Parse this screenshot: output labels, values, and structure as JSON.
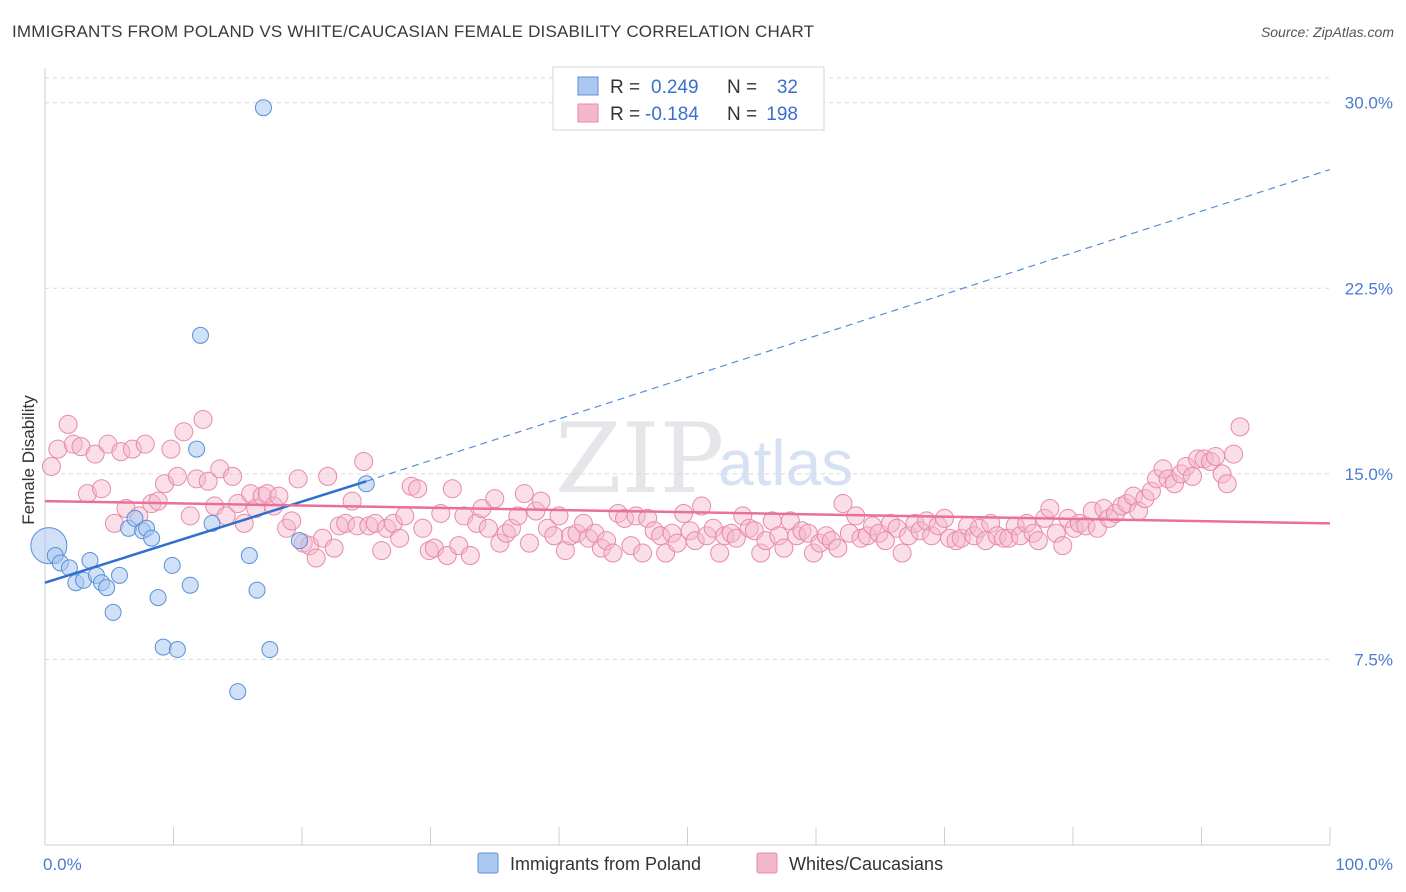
{
  "title": "IMMIGRANTS FROM POLAND VS WHITE/CAUCASIAN FEMALE DISABILITY CORRELATION CHART",
  "source": "Source: ZipAtlas.com",
  "watermark": {
    "part1": "ZIP",
    "part2": "atlas"
  },
  "colors": {
    "blue_fill": "#aac8f0",
    "blue_stroke": "#5a8fd8",
    "blue_line": "#2f6fd0",
    "pink_fill": "#f4b8cb",
    "pink_stroke": "#e88aa8",
    "pink_line": "#e8709a",
    "grid": "#d8d8d8",
    "tick_text": "#4a7bd0"
  },
  "legend_box": {
    "r_label": "R =",
    "n_label": "N =",
    "rows": [
      {
        "r": "0.249",
        "n": "32"
      },
      {
        "r": "-0.184",
        "n": "198"
      }
    ]
  },
  "chart_data": {
    "type": "scatter",
    "ylabel": "Female Disability",
    "xlim": [
      0,
      100
    ],
    "ylim": [
      0,
      31
    ],
    "x_tick_labels": [
      "0.0%",
      "100.0%"
    ],
    "y_tick_labels": [
      "7.5%",
      "15.0%",
      "22.5%",
      "30.0%"
    ],
    "y_ticks": [
      7.5,
      15.0,
      22.5,
      30.0
    ],
    "grid": true,
    "legend_placement": "top-center",
    "series": [
      {
        "name": "Immigrants from Poland",
        "color": "blue",
        "trend": {
          "x0": 0,
          "y0": 10.6,
          "x1": 25,
          "y1": 14.7,
          "extend_to_x": 100,
          "extend_y": 27.3
        },
        "points": [
          [
            0.3,
            12.1
          ],
          [
            0.8,
            11.7
          ],
          [
            1.2,
            11.4
          ],
          [
            1.9,
            11.2
          ],
          [
            2.4,
            10.6
          ],
          [
            3.0,
            10.7
          ],
          [
            3.5,
            11.5
          ],
          [
            4.0,
            10.9
          ],
          [
            4.4,
            10.6
          ],
          [
            4.8,
            10.4
          ],
          [
            5.3,
            9.4
          ],
          [
            5.8,
            10.9
          ],
          [
            6.5,
            12.8
          ],
          [
            7.0,
            13.2
          ],
          [
            7.6,
            12.7
          ],
          [
            7.9,
            12.8
          ],
          [
            8.3,
            12.4
          ],
          [
            8.8,
            10.0
          ],
          [
            9.2,
            8.0
          ],
          [
            9.9,
            11.3
          ],
          [
            10.3,
            7.9
          ],
          [
            11.3,
            10.5
          ],
          [
            11.8,
            16.0
          ],
          [
            12.1,
            20.6
          ],
          [
            13.0,
            13.0
          ],
          [
            15.0,
            6.2
          ],
          [
            15.9,
            11.7
          ],
          [
            16.5,
            10.3
          ],
          [
            17.0,
            29.8
          ],
          [
            17.5,
            7.9
          ],
          [
            19.8,
            12.3
          ],
          [
            25.0,
            14.6
          ]
        ],
        "big_point": [
          0.3,
          12.1
        ]
      },
      {
        "name": "Whites/Caucasians",
        "color": "pink",
        "trend": {
          "x0": 0,
          "y0": 13.9,
          "x1": 100,
          "y1": 13.0
        },
        "points": [
          [
            0.5,
            15.3
          ],
          [
            1.0,
            16.0
          ],
          [
            1.8,
            17.0
          ],
          [
            2.2,
            16.2
          ],
          [
            2.8,
            16.1
          ],
          [
            3.3,
            14.2
          ],
          [
            3.9,
            15.8
          ],
          [
            4.4,
            14.4
          ],
          [
            4.9,
            16.2
          ],
          [
            5.4,
            13.0
          ],
          [
            5.9,
            15.9
          ],
          [
            6.3,
            13.6
          ],
          [
            6.8,
            16.0
          ],
          [
            7.3,
            13.3
          ],
          [
            7.8,
            16.2
          ],
          [
            8.3,
            13.8
          ],
          [
            8.8,
            13.9
          ],
          [
            9.3,
            14.6
          ],
          [
            9.8,
            16.0
          ],
          [
            10.3,
            14.9
          ],
          [
            10.8,
            16.7
          ],
          [
            11.3,
            13.3
          ],
          [
            11.8,
            14.8
          ],
          [
            12.3,
            17.2
          ],
          [
            12.7,
            14.7
          ],
          [
            13.2,
            13.7
          ],
          [
            13.6,
            15.2
          ],
          [
            14.1,
            13.3
          ],
          [
            14.6,
            14.9
          ],
          [
            15.0,
            13.8
          ],
          [
            15.5,
            13.0
          ],
          [
            16.0,
            14.2
          ],
          [
            16.4,
            13.6
          ],
          [
            16.9,
            14.1
          ],
          [
            17.3,
            14.2
          ],
          [
            17.8,
            13.7
          ],
          [
            18.2,
            14.1
          ],
          [
            18.8,
            12.8
          ],
          [
            19.2,
            13.1
          ],
          [
            19.7,
            14.8
          ],
          [
            20.1,
            12.2
          ],
          [
            20.6,
            12.1
          ],
          [
            21.1,
            11.6
          ],
          [
            21.6,
            12.4
          ],
          [
            22.0,
            14.9
          ],
          [
            22.5,
            12.0
          ],
          [
            22.9,
            12.9
          ],
          [
            23.4,
            13.0
          ],
          [
            23.9,
            13.9
          ],
          [
            24.3,
            12.9
          ],
          [
            24.8,
            15.5
          ],
          [
            25.2,
            12.9
          ],
          [
            25.7,
            13.0
          ],
          [
            26.2,
            11.9
          ],
          [
            26.6,
            12.8
          ],
          [
            27.1,
            13.0
          ],
          [
            27.6,
            12.4
          ],
          [
            28.0,
            13.3
          ],
          [
            28.5,
            14.5
          ],
          [
            29.0,
            14.4
          ],
          [
            29.4,
            12.8
          ],
          [
            29.9,
            11.9
          ],
          [
            30.3,
            12.0
          ],
          [
            30.8,
            13.4
          ],
          [
            31.3,
            11.7
          ],
          [
            31.7,
            14.4
          ],
          [
            32.2,
            12.1
          ],
          [
            32.6,
            13.3
          ],
          [
            33.1,
            11.7
          ],
          [
            33.6,
            13.0
          ],
          [
            34.0,
            13.6
          ],
          [
            34.5,
            12.8
          ],
          [
            35.0,
            14.0
          ],
          [
            35.4,
            12.2
          ],
          [
            35.9,
            12.6
          ],
          [
            36.3,
            12.8
          ],
          [
            36.8,
            13.3
          ],
          [
            37.3,
            14.2
          ],
          [
            37.7,
            12.2
          ],
          [
            38.2,
            13.5
          ],
          [
            38.6,
            13.9
          ],
          [
            39.1,
            12.8
          ],
          [
            39.6,
            12.5
          ],
          [
            40.0,
            13.3
          ],
          [
            40.5,
            11.9
          ],
          [
            40.9,
            12.5
          ],
          [
            41.4,
            12.6
          ],
          [
            41.9,
            13.0
          ],
          [
            42.3,
            12.4
          ],
          [
            42.8,
            12.6
          ],
          [
            43.3,
            12.0
          ],
          [
            43.7,
            12.3
          ],
          [
            44.2,
            11.8
          ],
          [
            44.6,
            13.4
          ],
          [
            45.1,
            13.2
          ],
          [
            45.6,
            12.1
          ],
          [
            46.0,
            13.3
          ],
          [
            46.5,
            11.8
          ],
          [
            46.9,
            13.2
          ],
          [
            47.4,
            12.7
          ],
          [
            47.9,
            12.5
          ],
          [
            48.3,
            11.8
          ],
          [
            48.8,
            12.6
          ],
          [
            49.2,
            12.2
          ],
          [
            49.7,
            13.4
          ],
          [
            50.2,
            12.7
          ],
          [
            50.6,
            12.3
          ],
          [
            51.1,
            13.7
          ],
          [
            51.5,
            12.5
          ],
          [
            52.0,
            12.8
          ],
          [
            52.5,
            11.8
          ],
          [
            52.9,
            12.5
          ],
          [
            53.4,
            12.6
          ],
          [
            53.8,
            12.4
          ],
          [
            54.3,
            13.3
          ],
          [
            54.8,
            12.8
          ],
          [
            55.2,
            12.7
          ],
          [
            55.7,
            11.8
          ],
          [
            56.1,
            12.3
          ],
          [
            56.6,
            13.1
          ],
          [
            57.1,
            12.5
          ],
          [
            57.5,
            12.0
          ],
          [
            58.0,
            13.1
          ],
          [
            58.5,
            12.5
          ],
          [
            58.9,
            12.7
          ],
          [
            59.4,
            12.6
          ],
          [
            59.8,
            11.8
          ],
          [
            60.3,
            12.2
          ],
          [
            60.8,
            12.5
          ],
          [
            61.2,
            12.3
          ],
          [
            61.7,
            12.0
          ],
          [
            62.1,
            13.8
          ],
          [
            62.6,
            12.6
          ],
          [
            63.1,
            13.3
          ],
          [
            63.5,
            12.4
          ],
          [
            64.0,
            12.5
          ],
          [
            64.4,
            12.9
          ],
          [
            64.9,
            12.6
          ],
          [
            65.4,
            12.3
          ],
          [
            65.8,
            13.0
          ],
          [
            66.3,
            12.8
          ],
          [
            66.7,
            11.8
          ],
          [
            67.2,
            12.5
          ],
          [
            67.7,
            13.0
          ],
          [
            68.1,
            12.7
          ],
          [
            68.6,
            13.1
          ],
          [
            69.0,
            12.5
          ],
          [
            69.5,
            12.9
          ],
          [
            70.0,
            13.2
          ],
          [
            70.4,
            12.4
          ],
          [
            70.9,
            12.3
          ],
          [
            71.3,
            12.4
          ],
          [
            71.8,
            12.9
          ],
          [
            72.3,
            12.5
          ],
          [
            72.7,
            12.8
          ],
          [
            73.2,
            12.3
          ],
          [
            73.6,
            13.0
          ],
          [
            74.1,
            12.5
          ],
          [
            74.6,
            12.4
          ],
          [
            75.0,
            12.4
          ],
          [
            75.5,
            12.9
          ],
          [
            75.9,
            12.5
          ],
          [
            76.4,
            13.0
          ],
          [
            76.9,
            12.6
          ],
          [
            77.3,
            12.3
          ],
          [
            77.8,
            13.2
          ],
          [
            78.2,
            13.6
          ],
          [
            78.7,
            12.6
          ],
          [
            79.2,
            12.1
          ],
          [
            79.6,
            13.2
          ],
          [
            80.1,
            12.8
          ],
          [
            80.5,
            13.0
          ],
          [
            81.0,
            12.9
          ],
          [
            81.5,
            13.5
          ],
          [
            81.9,
            12.8
          ],
          [
            82.4,
            13.6
          ],
          [
            82.8,
            13.2
          ],
          [
            83.3,
            13.4
          ],
          [
            83.8,
            13.7
          ],
          [
            84.2,
            13.8
          ],
          [
            84.7,
            14.1
          ],
          [
            85.1,
            13.5
          ],
          [
            85.6,
            14.0
          ],
          [
            86.1,
            14.3
          ],
          [
            86.5,
            14.8
          ],
          [
            87.0,
            15.2
          ],
          [
            87.4,
            14.8
          ],
          [
            87.9,
            14.6
          ],
          [
            88.4,
            15.0
          ],
          [
            88.8,
            15.3
          ],
          [
            89.3,
            14.9
          ],
          [
            89.7,
            15.6
          ],
          [
            90.2,
            15.6
          ],
          [
            90.7,
            15.5
          ],
          [
            91.1,
            15.7
          ],
          [
            91.6,
            15.0
          ],
          [
            92.0,
            14.6
          ],
          [
            92.5,
            15.8
          ],
          [
            93.0,
            16.9
          ]
        ]
      }
    ]
  },
  "bottom_legend": {
    "items": [
      {
        "label": "Immigrants from Poland",
        "color": "blue"
      },
      {
        "label": "Whites/Caucasians",
        "color": "pink"
      }
    ]
  }
}
